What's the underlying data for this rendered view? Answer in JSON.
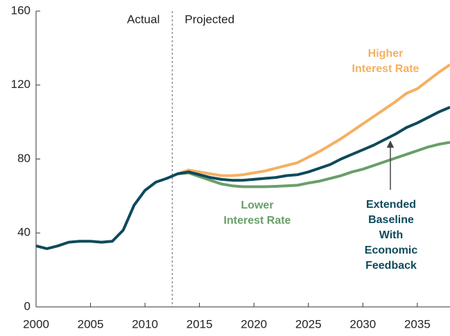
{
  "chart_data": {
    "type": "line",
    "x": [
      2000,
      2001,
      2002,
      2003,
      2004,
      2005,
      2006,
      2007,
      2008,
      2009,
      2010,
      2011,
      2012,
      2013,
      2014,
      2015,
      2016,
      2017,
      2018,
      2019,
      2020,
      2021,
      2022,
      2023,
      2024,
      2025,
      2026,
      2027,
      2028,
      2029,
      2030,
      2031,
      2032,
      2033,
      2034,
      2035,
      2036,
      2037,
      2038
    ],
    "series": [
      {
        "label": [
          "Higher",
          "Interest Rate"
        ],
        "color": "#f4b060",
        "values": [
          null,
          null,
          null,
          null,
          null,
          null,
          null,
          null,
          null,
          null,
          null,
          null,
          null,
          72,
          74,
          73,
          72,
          71,
          71,
          71.5,
          72.5,
          73.5,
          75,
          76.5,
          78,
          81,
          84,
          87.5,
          91,
          95,
          99,
          103,
          107,
          111,
          115.5,
          118,
          122.5,
          127,
          131
        ]
      },
      {
        "label": [
          "Lower",
          "Interest Rate"
        ],
        "color": "#6a9e6a",
        "values": [
          null,
          null,
          null,
          null,
          null,
          null,
          null,
          null,
          null,
          null,
          null,
          null,
          null,
          72,
          72.5,
          70.5,
          68.5,
          66.5,
          65.5,
          65,
          65,
          65,
          65.2,
          65.5,
          65.8,
          67,
          68,
          69.5,
          71,
          73,
          74.5,
          76.5,
          78.5,
          80.5,
          82.5,
          84.5,
          86.5,
          88,
          89
        ]
      },
      {
        "label": [
          "Extended",
          "Baseline",
          "With",
          "Economic",
          "Feedback"
        ],
        "color": "#0d4a5c",
        "values": [
          33,
          31.5,
          33,
          35,
          35.5,
          35.5,
          35,
          35.5,
          41.5,
          55,
          63,
          67.5,
          69.5,
          72,
          73,
          71.5,
          70,
          69,
          68.5,
          68.5,
          69,
          69.5,
          70,
          71,
          71.5,
          73,
          75,
          77,
          80,
          82.5,
          85,
          87.5,
          90.5,
          93.5,
          97,
          99.5,
          102.5,
          105.5,
          108
        ]
      }
    ],
    "annotations": [
      "Actual",
      "Projected"
    ],
    "divider": 2012.5,
    "xlim": [
      2000,
      2038
    ],
    "xticks": [
      2000,
      2005,
      2010,
      2015,
      2020,
      2025,
      2030,
      2035
    ],
    "ylim": [
      0,
      160
    ],
    "yticks": [
      0,
      40,
      80,
      120,
      160
    ]
  }
}
